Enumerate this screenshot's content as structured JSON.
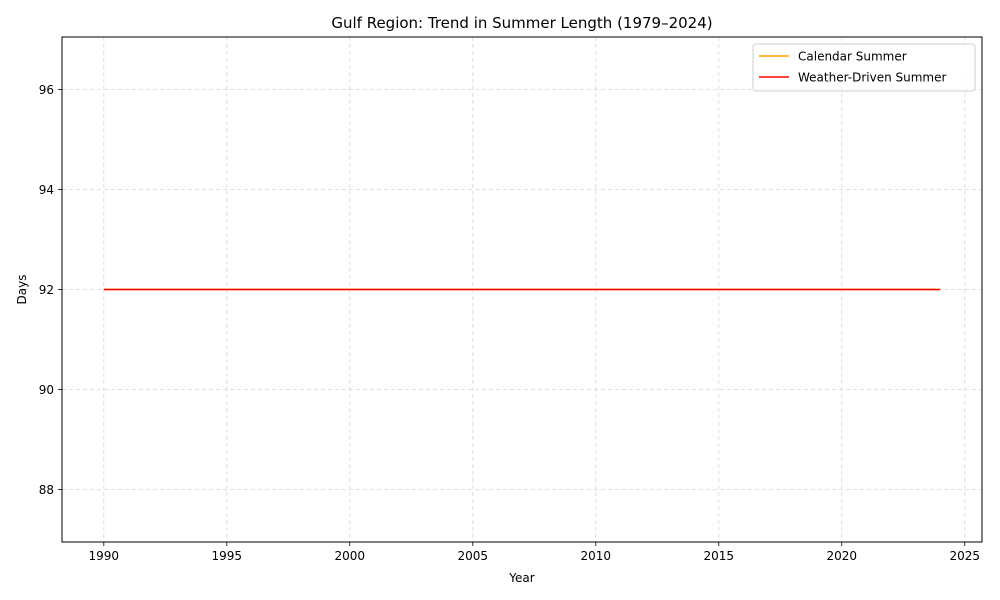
{
  "chart_data": {
    "type": "line",
    "title": "Gulf Region: Trend in Summer Length (1979–2024)",
    "xlabel": "Year",
    "ylabel": "Days",
    "xlim": [
      1988.3,
      2025.7
    ],
    "ylim": [
      86.95,
      97.05
    ],
    "x_ticks": [
      1990,
      1995,
      2000,
      2005,
      2010,
      2015,
      2020,
      2025
    ],
    "y_ticks": [
      88,
      90,
      92,
      94,
      96
    ],
    "grid": true,
    "legend_position": "top-right",
    "series": [
      {
        "name": "Calendar Summer",
        "color": "#ffa500",
        "x": [
          1990,
          2024
        ],
        "y": [
          92,
          92
        ]
      },
      {
        "name": "Weather-Driven Summer",
        "color": "#ff0000",
        "x": [
          1990,
          2024
        ],
        "y": [
          92,
          92
        ]
      }
    ]
  }
}
